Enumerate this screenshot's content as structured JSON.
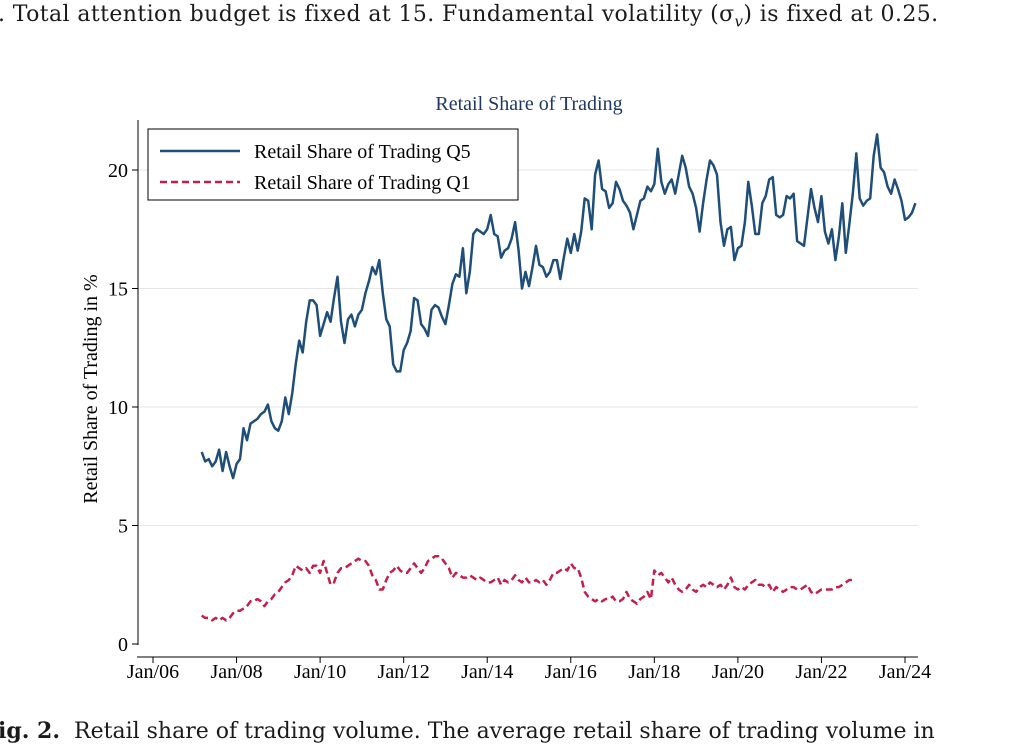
{
  "caption_top": ". Total attention budget is fixed at 15. Fundamental volatility (σ",
  "caption_top_sub": "v",
  "caption_top_end": ") is fixed at 0.25.",
  "caption_bottom_label": "ig. 2.",
  "caption_bottom_text": "Retail share of trading volume. The average retail share of trading volume in",
  "chart_data": {
    "type": "line",
    "title": "Retail Share of Trading",
    "xlabel": "",
    "ylabel": "Retail Share of Trading in %",
    "xlim": [
      "2006-01",
      "2024-01"
    ],
    "ylim": [
      0,
      22
    ],
    "x_ticks": [
      "Jan/06",
      "Jan/08",
      "Jan/10",
      "Jan/12",
      "Jan/14",
      "Jan/16",
      "Jan/18",
      "Jan/20",
      "Jan/22",
      "Jan/24"
    ],
    "y_ticks": [
      0,
      5,
      10,
      15,
      20
    ],
    "grid": true,
    "legend_position": "top-left",
    "x_start": "2007-03",
    "x_step": "1 month",
    "series": [
      {
        "name": "Retail Share of Trading Q5",
        "color": "#1f4e79",
        "style": "solid",
        "values": [
          8.1,
          7.7,
          7.8,
          7.5,
          7.7,
          8.2,
          7.3,
          8.1,
          7.5,
          7.0,
          7.6,
          7.8,
          9.1,
          8.6,
          9.3,
          9.4,
          9.5,
          9.7,
          9.8,
          10.1,
          9.4,
          9.1,
          9.0,
          9.4,
          10.4,
          9.7,
          10.6,
          11.8,
          12.8,
          12.3,
          13.6,
          14.5,
          14.5,
          14.3,
          13.0,
          13.5,
          14.0,
          13.6,
          14.6,
          15.5,
          13.6,
          12.7,
          13.7,
          13.9,
          13.4,
          13.9,
          14.1,
          14.8,
          15.3,
          15.9,
          15.6,
          16.2,
          14.8,
          13.7,
          13.4,
          11.8,
          11.5,
          11.5,
          12.4,
          12.7,
          13.2,
          14.6,
          14.5,
          13.5,
          13.3,
          13.0,
          14.1,
          14.3,
          14.2,
          13.8,
          13.5,
          14.3,
          15.2,
          15.6,
          15.5,
          16.7,
          14.8,
          15.7,
          17.3,
          17.5,
          17.4,
          17.3,
          17.5,
          18.1,
          17.3,
          17.2,
          16.3,
          16.6,
          16.7,
          17.1,
          17.8,
          16.6,
          15.0,
          15.7,
          15.1,
          15.9,
          16.8,
          16.0,
          15.9,
          15.5,
          15.7,
          16.2,
          16.2,
          15.4,
          16.3,
          17.1,
          16.5,
          17.3,
          16.6,
          17.4,
          18.8,
          18.7,
          17.5,
          19.8,
          20.4,
          19.2,
          19.1,
          18.4,
          18.6,
          19.5,
          19.2,
          18.7,
          18.5,
          18.2,
          17.5,
          18.1,
          18.7,
          18.8,
          19.3,
          19.1,
          19.4,
          20.9,
          19.5,
          19.0,
          19.4,
          19.6,
          19.0,
          19.8,
          20.6,
          20.1,
          19.3,
          19.0,
          18.4,
          17.4,
          18.6,
          19.6,
          20.4,
          20.2,
          19.8,
          17.8,
          16.8,
          17.5,
          17.6,
          16.2,
          16.7,
          16.8,
          17.8,
          19.5,
          18.5,
          17.3,
          17.3,
          18.6,
          18.9,
          19.6,
          19.7,
          18.1,
          18.0,
          18.1,
          18.9,
          18.8,
          19.0,
          17.0,
          16.9,
          16.8,
          18.0,
          19.2,
          18.4,
          17.8,
          18.9,
          17.4,
          16.9,
          17.5,
          16.2,
          17.2,
          18.6,
          16.5,
          17.7,
          19.0,
          20.7,
          18.8,
          18.5,
          18.7,
          18.8,
          20.6,
          21.5,
          20.1,
          19.9,
          19.3,
          19.0,
          19.6,
          19.2,
          18.7,
          17.9,
          18.0,
          18.2,
          18.6
        ]
      },
      {
        "name": "Retail Share of Trading Q1",
        "color": "#c41e4a",
        "style": "dashed",
        "values": [
          1.2,
          1.1,
          1.1,
          1.0,
          1.1,
          1.0,
          1.1,
          1.0,
          1.1,
          1.3,
          1.4,
          1.4,
          1.5,
          1.6,
          1.8,
          1.8,
          1.9,
          1.8,
          1.6,
          1.8,
          1.9,
          2.1,
          2.2,
          2.4,
          2.6,
          2.7,
          2.9,
          3.3,
          3.2,
          3.1,
          3.2,
          3.0,
          3.3,
          3.3,
          3.0,
          3.5,
          3.0,
          2.5,
          2.6,
          3.0,
          3.2,
          3.2,
          3.3,
          3.4,
          3.5,
          3.6,
          3.5,
          3.5,
          3.3,
          2.9,
          2.7,
          2.3,
          2.3,
          2.7,
          3.0,
          3.1,
          3.3,
          3.1,
          3.0,
          3.0,
          3.2,
          3.4,
          3.2,
          3.0,
          3.2,
          3.5,
          3.6,
          3.7,
          3.7,
          3.6,
          3.4,
          3.2,
          2.8,
          3.0,
          2.9,
          2.8,
          2.8,
          2.9,
          2.8,
          2.7,
          2.8,
          2.7,
          2.6,
          2.6,
          2.7,
          2.8,
          2.5,
          2.7,
          2.6,
          2.7,
          2.9,
          2.7,
          2.6,
          2.8,
          2.6,
          2.6,
          2.7,
          2.6,
          2.7,
          2.5,
          2.7,
          3.0,
          3.0,
          3.1,
          3.2,
          3.1,
          3.4,
          3.2,
          3.2,
          2.8,
          2.2,
          2.0,
          1.9,
          1.8,
          1.9,
          1.8,
          1.9,
          1.9,
          2.0,
          1.8,
          1.8,
          1.9,
          2.2,
          1.9,
          1.8,
          1.7,
          1.9,
          2.0,
          2.2,
          1.9,
          3.1,
          2.9,
          3.0,
          2.8,
          2.6,
          2.8,
          2.5,
          2.3,
          2.2,
          2.3,
          2.5,
          2.3,
          2.2,
          2.4,
          2.5,
          2.4,
          2.6,
          2.5,
          2.4,
          2.5,
          2.3,
          2.5,
          2.8,
          2.4,
          2.3,
          2.4,
          2.3,
          2.5,
          2.6,
          2.7,
          2.5,
          2.5,
          2.4,
          2.5,
          2.2,
          2.4,
          2.3,
          2.2,
          2.3,
          2.4,
          2.4,
          2.3,
          2.3,
          2.4,
          2.5,
          2.2,
          2.1,
          2.2,
          2.3,
          2.3,
          2.3,
          2.3,
          2.4,
          2.4,
          2.5,
          2.6,
          2.7,
          2.7
        ]
      }
    ]
  }
}
